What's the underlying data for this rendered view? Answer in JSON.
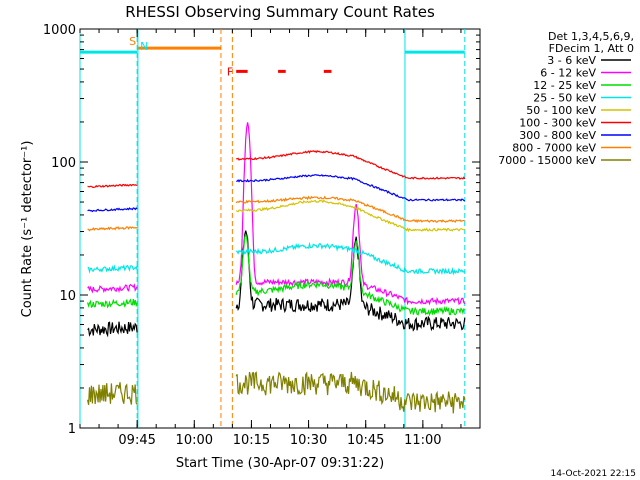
{
  "chart_data": {
    "type": "line",
    "title": "RHESSI Observing Summary Count Rates",
    "xlabel": "Start Time (30-Apr-07 09:31:22)",
    "ylabel": "Count Rate (s⁻¹ detector⁻¹)",
    "y_scale": "log",
    "ylim": [
      1,
      1000
    ],
    "xlim_minutes_after_0930": [
      0,
      105
    ],
    "x_ticks": [
      {
        "label": "09:45",
        "minutes": 15
      },
      {
        "label": "10:00",
        "minutes": 30
      },
      {
        "label": "10:15",
        "minutes": 45
      },
      {
        "label": "10:30",
        "minutes": 60
      },
      {
        "label": "10:45",
        "minutes": 75
      },
      {
        "label": "11:00",
        "minutes": 90
      }
    ],
    "y_ticks": [
      {
        "label": "1",
        "value": 1
      },
      {
        "label": "10",
        "value": 10
      },
      {
        "label": "100",
        "value": 100
      },
      {
        "label": "1000",
        "value": 1000
      }
    ],
    "legend_header": [
      "Det 1,3,4,5,6,9,",
      "FDecim 1, Att 0"
    ],
    "series": [
      {
        "name": "3 - 6 keV",
        "color": "#000000",
        "level": 5.5,
        "after": 8.5,
        "noise": 0.12,
        "peak": 22,
        "peak_x": 43.5,
        "bump": 0,
        "late": 17
      },
      {
        "name": "6 - 12 keV",
        "color": "#ff00ff",
        "level": 11.0,
        "after": 12.5,
        "noise": 0.05,
        "peak": 190,
        "peak_x": 44.0,
        "bump": 0,
        "late": 36
      },
      {
        "name": "12 - 25 keV",
        "color": "#00dd00",
        "level": 8.5,
        "after": 10.5,
        "noise": 0.06,
        "peak": 17,
        "peak_x": 43.5,
        "bump": 0.15,
        "late": 15
      },
      {
        "name": "25 - 50 keV",
        "color": "#00e5e5",
        "level": 15.5,
        "after": 21.0,
        "noise": 0.04,
        "peak": 0,
        "peak_x": 0,
        "bump": 0.12,
        "late": 0
      },
      {
        "name": "50 - 100 keV",
        "color": "#d4c400",
        "level": 0,
        "after": 43.0,
        "noise": 0.02,
        "peak": 0,
        "peak_x": 0,
        "bump": 0.18,
        "late": 0
      },
      {
        "name": "100 - 300 keV",
        "color": "#ff0000",
        "level": 65.0,
        "after": 105.0,
        "noise": 0.015,
        "peak": 0,
        "peak_x": 0,
        "bump": 0.14,
        "late": 0
      },
      {
        "name": "300 - 800 keV",
        "color": "#0000ff",
        "level": 43.0,
        "after": 72.0,
        "noise": 0.015,
        "peak": 0,
        "peak_x": 0,
        "bump": 0.1,
        "late": 0
      },
      {
        "name": "800 - 7000 keV",
        "color": "#ff8000",
        "level": 31.0,
        "after": 50.0,
        "noise": 0.02,
        "peak": 0,
        "peak_x": 0,
        "bump": 0.08,
        "late": 0
      },
      {
        "name": "7000 - 15000 keV",
        "color": "#808000",
        "level": 1.8,
        "after": 2.2,
        "noise": 0.2,
        "peak": 0,
        "peak_x": 0,
        "bump": 0,
        "late": 0
      }
    ],
    "intervals": {
      "night": [
        [
          0,
          15
        ],
        [
          85.3,
          101
        ]
      ],
      "saa": [
        [
          15,
          37
        ]
      ],
      "flare": [
        [
          41,
          44
        ],
        [
          52,
          54
        ],
        [
          64,
          66
        ]
      ],
      "gap": [
        [
          15.2,
          40
        ]
      ]
    },
    "interval_labels": {
      "saa": "S",
      "night": "N",
      "flare": "F"
    },
    "level_values": {
      "night": 670,
      "saa": 670,
      "flare": 480
    },
    "timestamp": "14-Oct-2021 22:15"
  }
}
